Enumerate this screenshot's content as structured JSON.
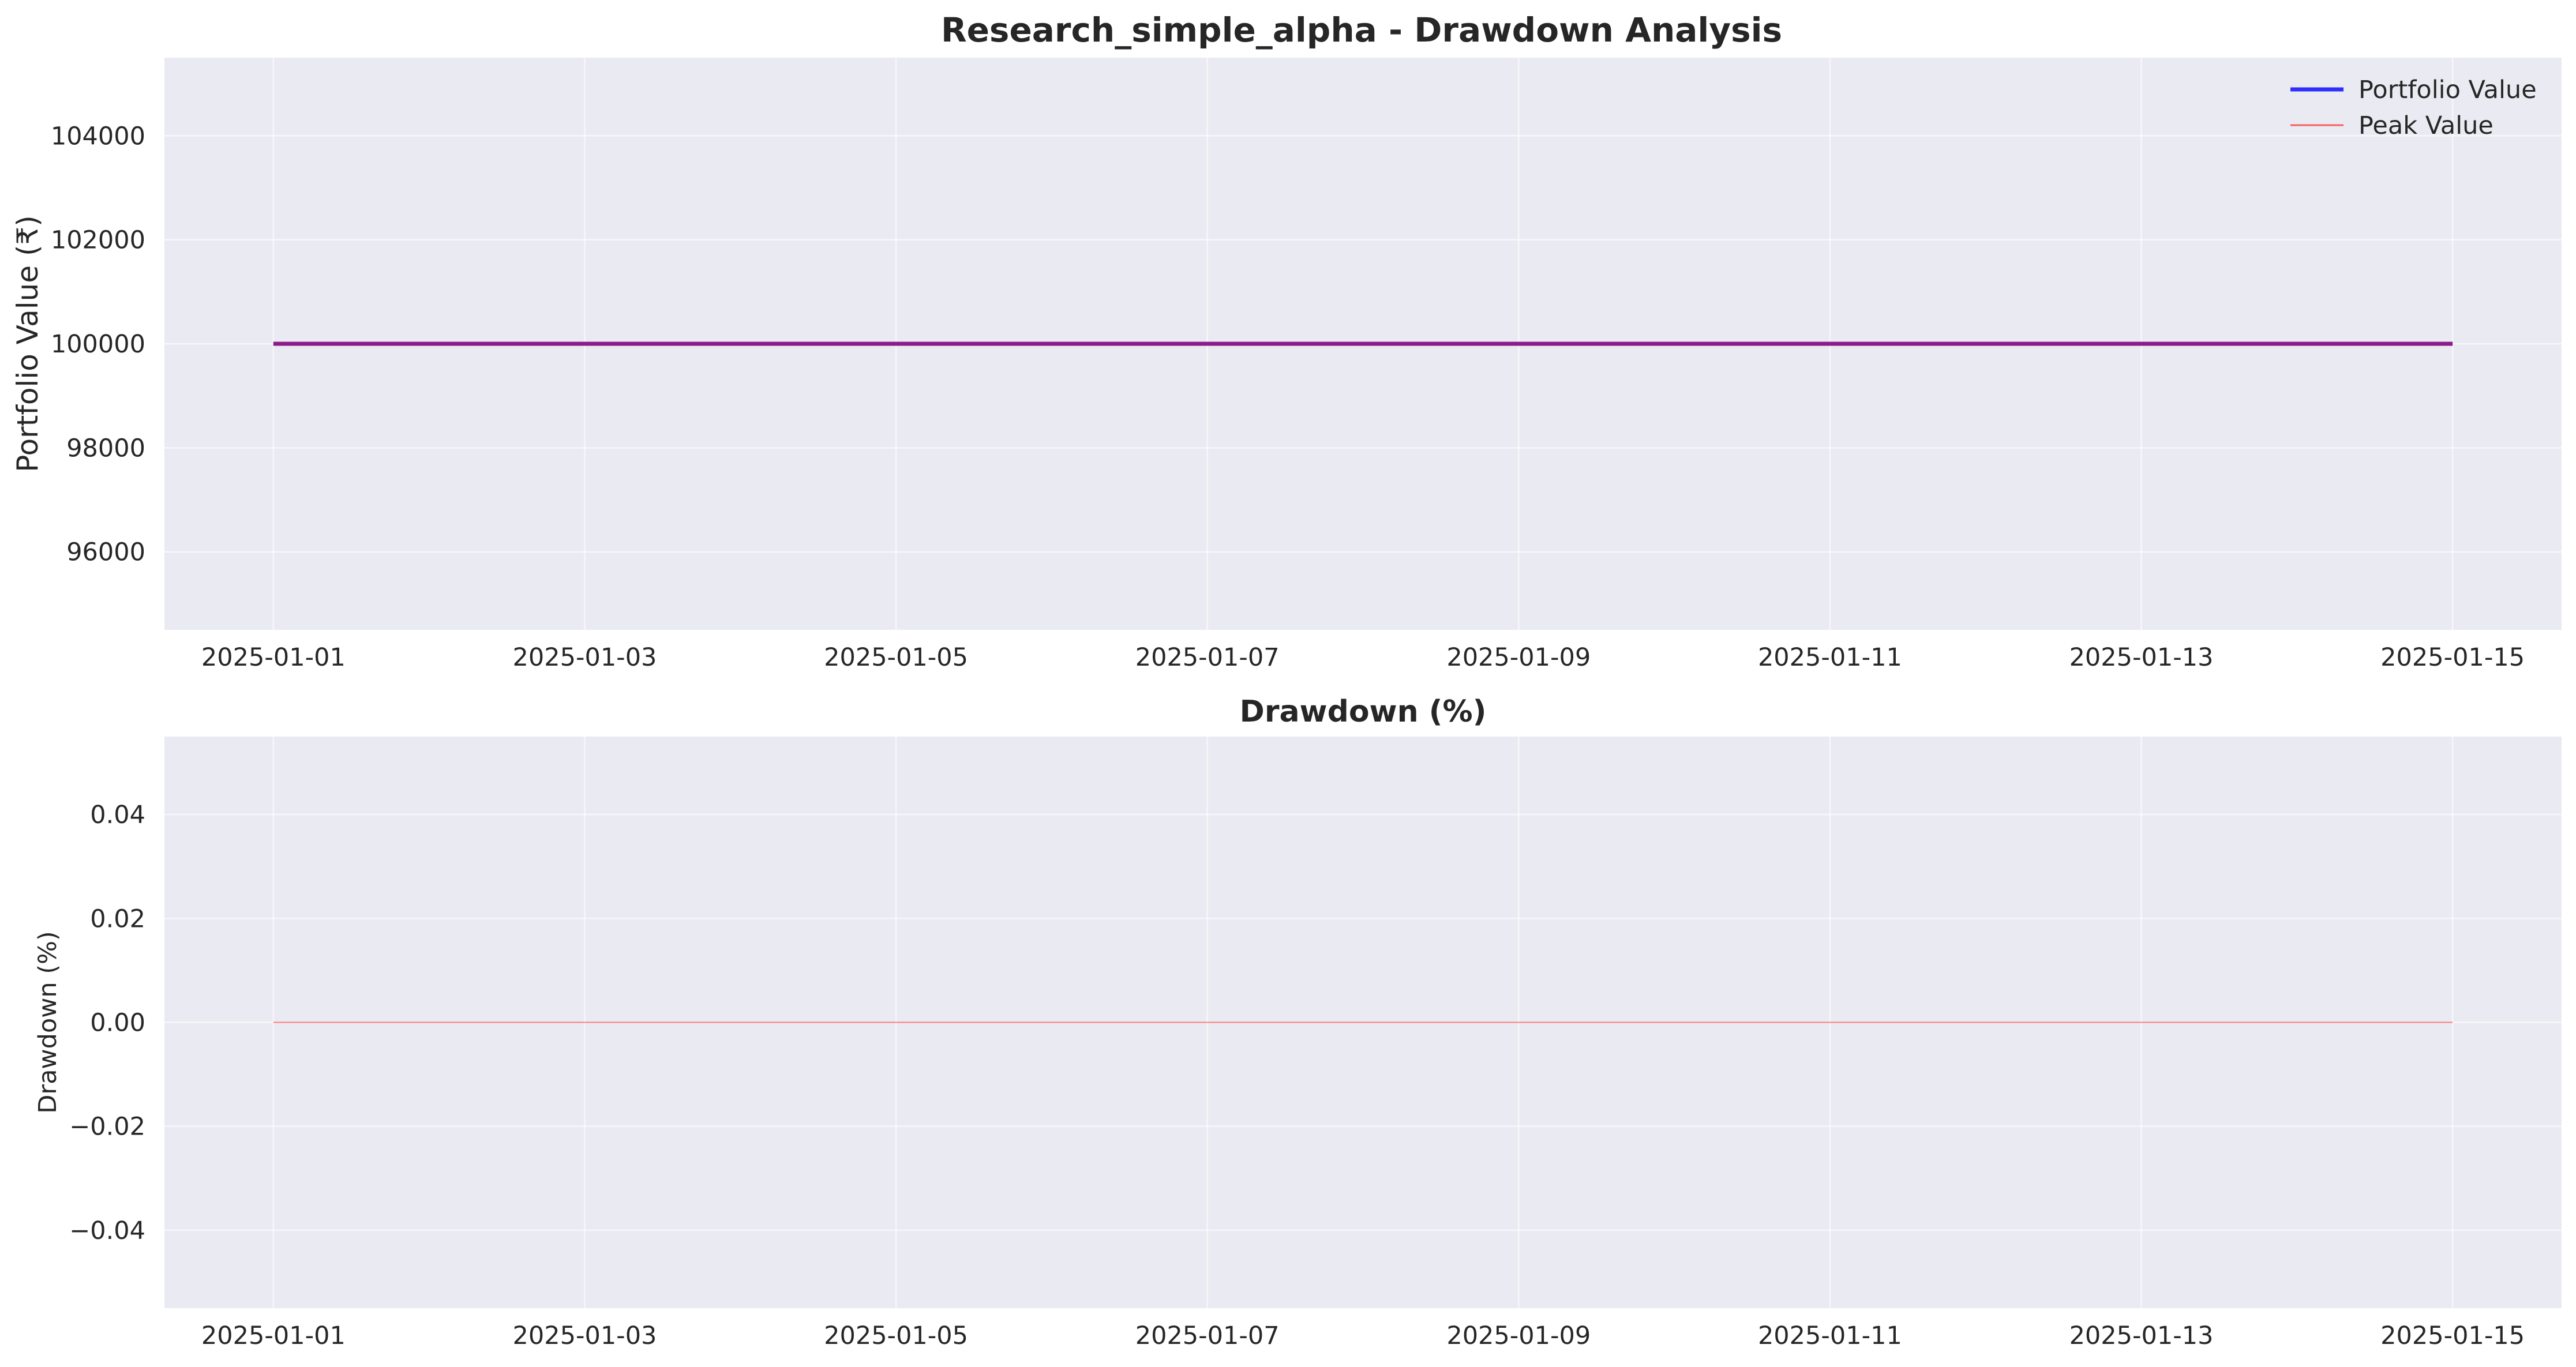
{
  "chart_data": [
    {
      "type": "line",
      "title": "Research_simple_alpha - Drawdown Analysis",
      "xlabel": "",
      "ylabel": "Portfolio Value (₹)",
      "x": [
        "2025-01-01",
        "2025-01-02",
        "2025-01-03",
        "2025-01-04",
        "2025-01-05",
        "2025-01-06",
        "2025-01-07",
        "2025-01-08",
        "2025-01-09",
        "2025-01-10",
        "2025-01-11",
        "2025-01-12",
        "2025-01-13",
        "2025-01-14",
        "2025-01-15"
      ],
      "series": [
        {
          "name": "Portfolio Value",
          "color": "#0000ff",
          "values": [
            100000,
            100000,
            100000,
            100000,
            100000,
            100000,
            100000,
            100000,
            100000,
            100000,
            100000,
            100000,
            100000,
            100000,
            100000
          ]
        },
        {
          "name": "Peak Value",
          "color": "#ff0000",
          "values": [
            100000,
            100000,
            100000,
            100000,
            100000,
            100000,
            100000,
            100000,
            100000,
            100000,
            100000,
            100000,
            100000,
            100000,
            100000
          ]
        }
      ],
      "xticks": [
        "2025-01-01",
        "2025-01-03",
        "2025-01-05",
        "2025-01-07",
        "2025-01-09",
        "2025-01-11",
        "2025-01-13",
        "2025-01-15"
      ],
      "yticks": [
        "96000",
        "98000",
        "100000",
        "102000",
        "104000"
      ],
      "ylim": [
        94500,
        105500
      ],
      "grid": true,
      "legend": "top-right"
    },
    {
      "type": "area",
      "title": "Drawdown (%)",
      "xlabel": "",
      "ylabel": "Drawdown (%)",
      "x": [
        "2025-01-01",
        "2025-01-02",
        "2025-01-03",
        "2025-01-04",
        "2025-01-05",
        "2025-01-06",
        "2025-01-07",
        "2025-01-08",
        "2025-01-09",
        "2025-01-10",
        "2025-01-11",
        "2025-01-12",
        "2025-01-13",
        "2025-01-14",
        "2025-01-15"
      ],
      "series": [
        {
          "color": "#ff0000",
          "values": [
            0,
            0,
            0,
            0,
            0,
            0,
            0,
            0,
            0,
            0,
            0,
            0,
            0,
            0,
            0
          ]
        }
      ],
      "xticks": [
        "2025-01-01",
        "2025-01-03",
        "2025-01-05",
        "2025-01-07",
        "2025-01-09",
        "2025-01-11",
        "2025-01-13",
        "2025-01-15"
      ],
      "yticks": [
        "−0.04",
        "−0.02",
        "0.00",
        "0.02",
        "0.04"
      ],
      "ylim": [
        -0.055,
        0.055
      ],
      "grid": true
    }
  ],
  "colors": {
    "axes_bg": "#eaeaf2",
    "grid": "#ffffff",
    "text": "#262626"
  }
}
